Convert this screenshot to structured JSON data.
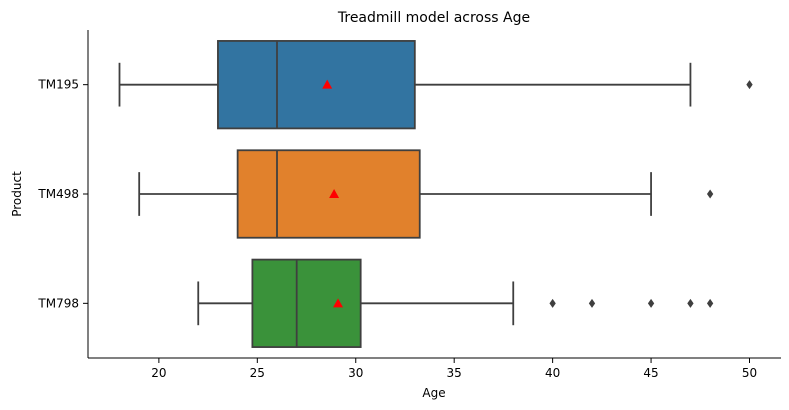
{
  "chart_data": {
    "type": "boxplot",
    "orientation": "horizontal",
    "title": "Treadmill model across Age",
    "xlabel": "Age",
    "ylabel": "Product",
    "xlim": [
      16.4,
      51.6
    ],
    "xticks": [
      20,
      25,
      30,
      35,
      40,
      45,
      50
    ],
    "grid": false,
    "legend": "none",
    "categories": [
      "TM195",
      "TM498",
      "TM798"
    ],
    "series": [
      {
        "category": "TM195",
        "color": "#3274a1",
        "whisker_low": 18,
        "q1": 23,
        "median": 26,
        "q3": 33,
        "whisker_high": 47,
        "mean": 28.55,
        "outliers": [
          50
        ]
      },
      {
        "category": "TM498",
        "color": "#e1812c",
        "whisker_low": 19,
        "q1": 24,
        "median": 26,
        "q3": 33.25,
        "whisker_high": 45,
        "mean": 28.9,
        "outliers": [
          48
        ]
      },
      {
        "category": "TM798",
        "color": "#3a923a",
        "whisker_low": 22,
        "q1": 24.75,
        "median": 27,
        "q3": 30.25,
        "whisker_high": 38,
        "mean": 29.1,
        "outliers": [
          40,
          42,
          45,
          47,
          48
        ]
      }
    ],
    "style": {
      "line_color": "#3f3f3f",
      "mean_marker_color": "#ff0000",
      "outlier_color": "#3f3f3f"
    }
  }
}
